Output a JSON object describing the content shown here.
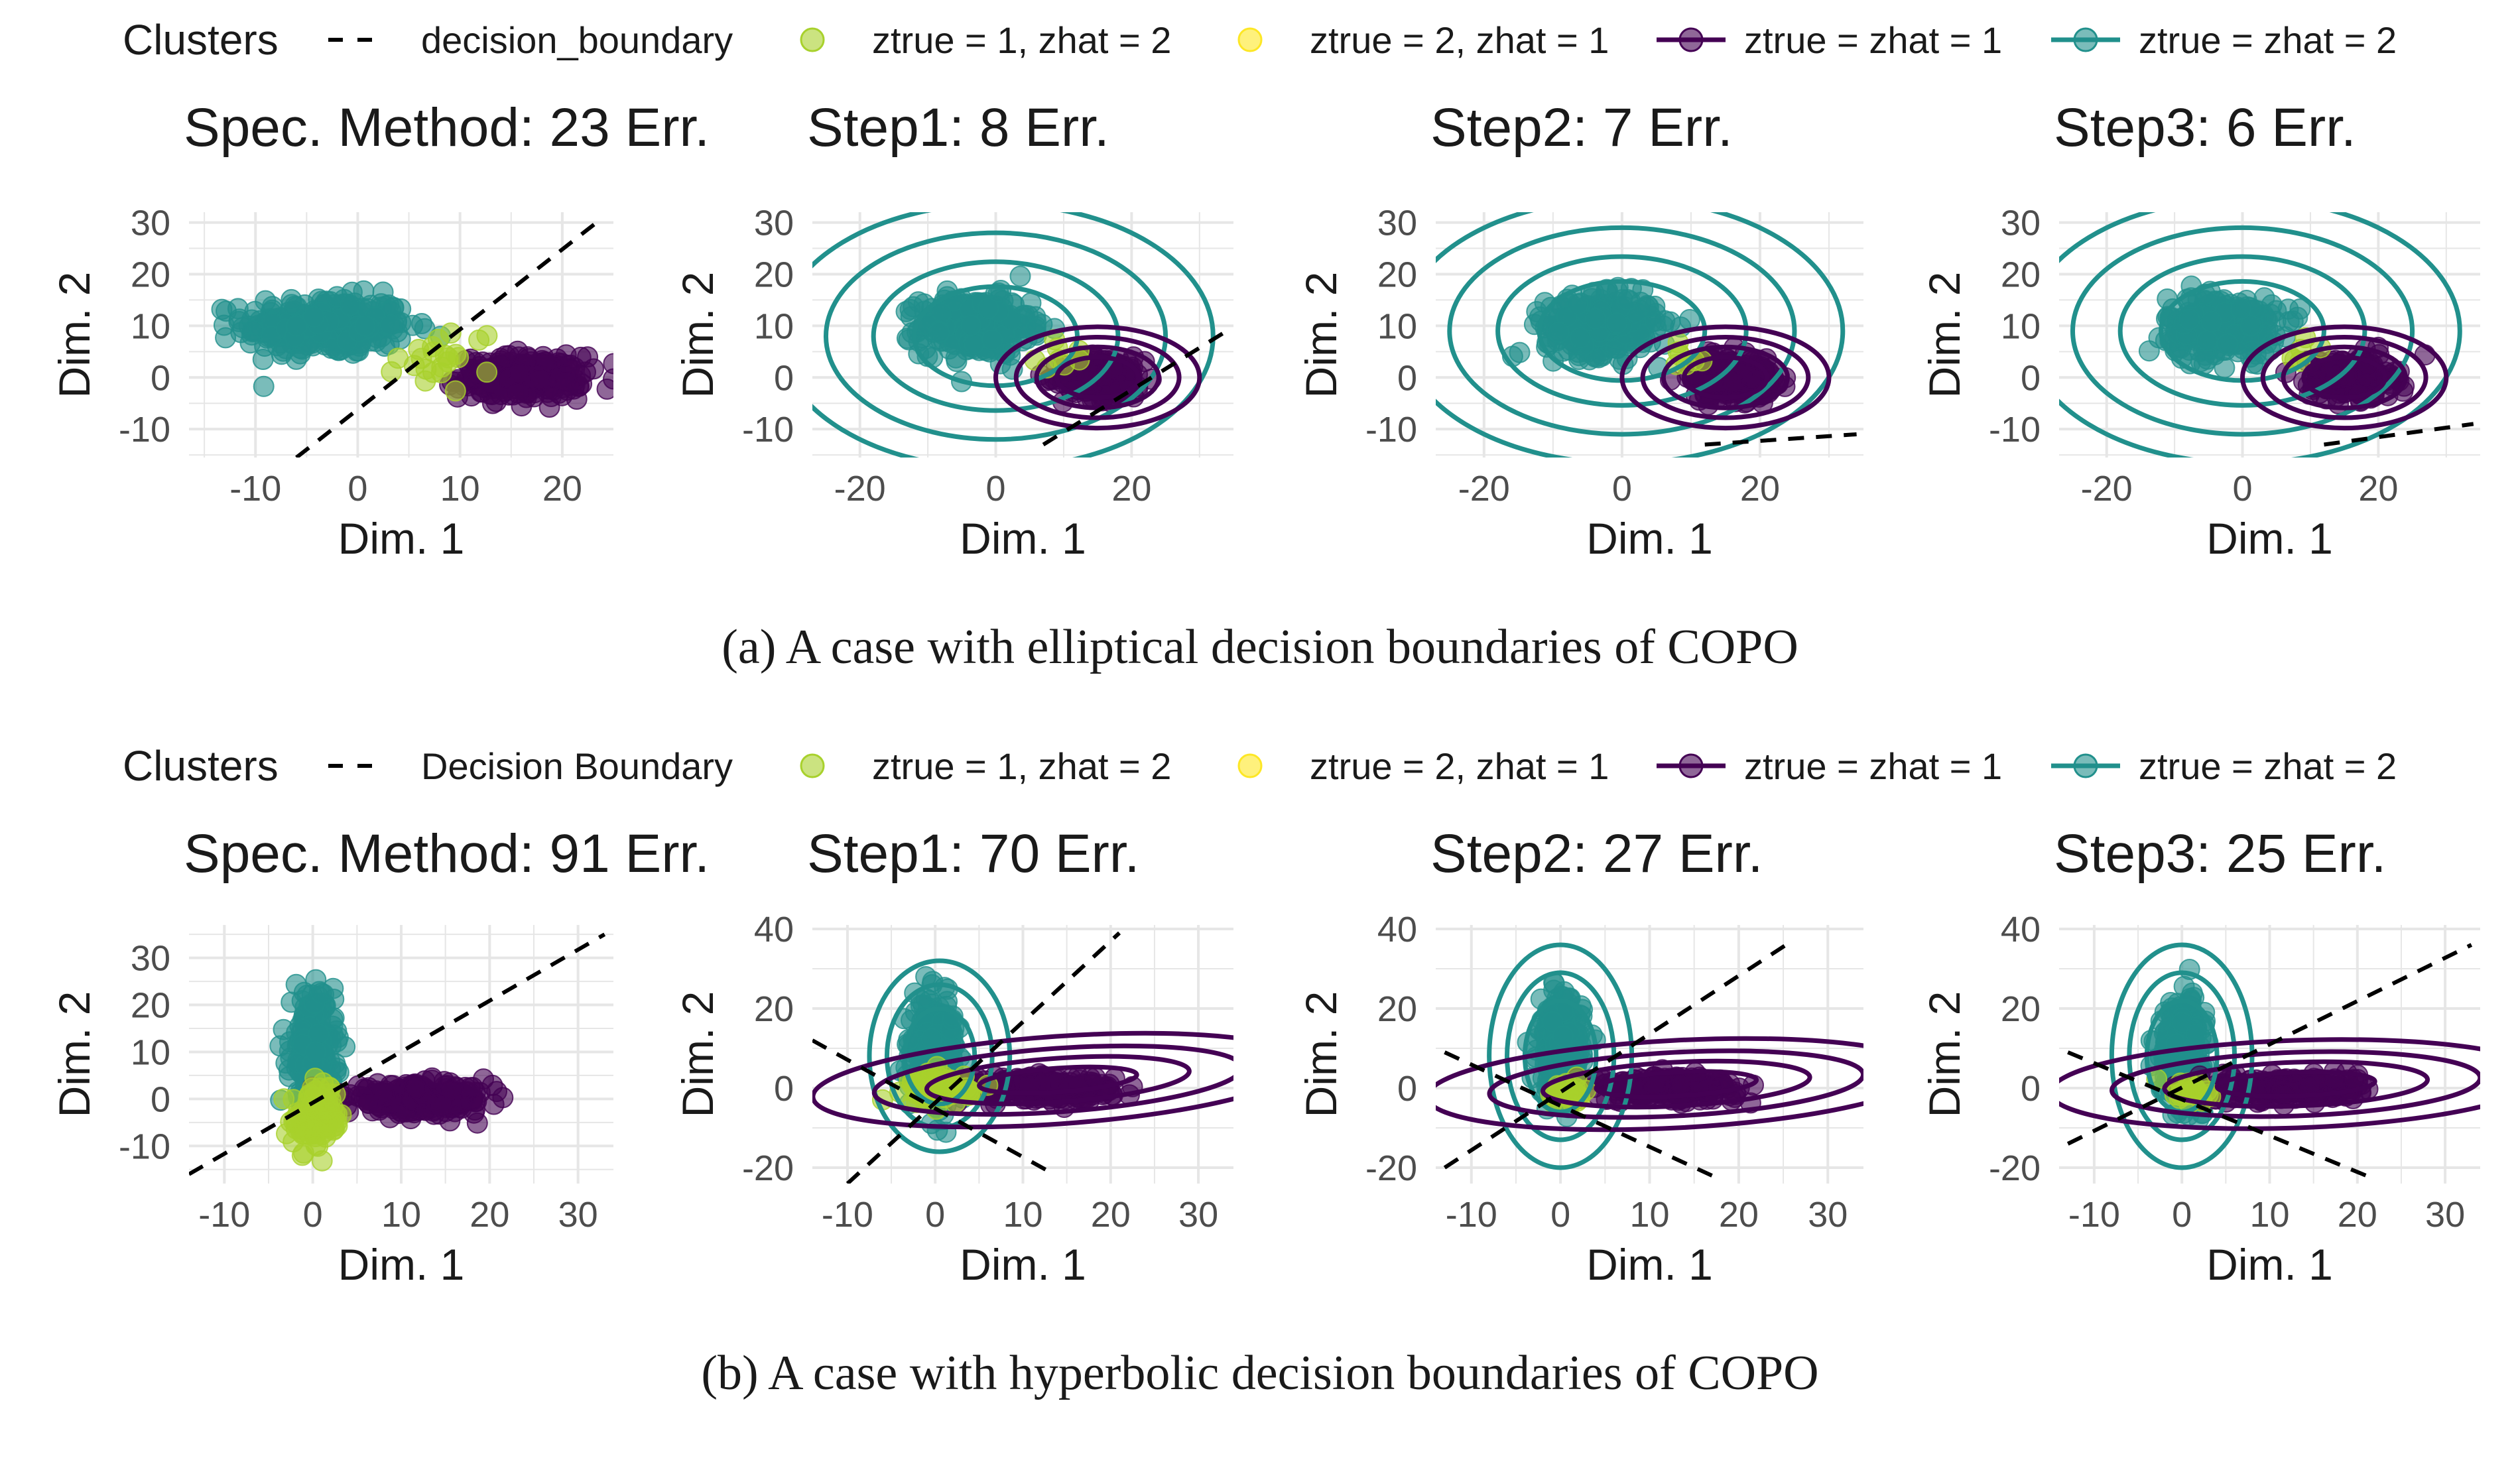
{
  "colors": {
    "teal": "#21908c",
    "purple": "#440154",
    "lime": "#a8d12c",
    "yellow": "#fde725",
    "grid": "#e6e6e6",
    "text": "#1a1a1a",
    "tick": "#4d4d4d"
  },
  "figures": [
    {
      "legend": {
        "title": "Clusters",
        "items": [
          {
            "key": "boundary",
            "label": "decision_boundary"
          },
          {
            "key": "lime",
            "label": "ztrue = 1, zhat = 2"
          },
          {
            "key": "yellow",
            "label": "ztrue = 2, zhat = 1"
          },
          {
            "key": "purple",
            "label": "ztrue = zhat = 1"
          },
          {
            "key": "teal",
            "label": "ztrue = zhat = 2"
          }
        ]
      },
      "caption": "(a) A case with elliptical decision boundaries of COPO"
    },
    {
      "legend": {
        "title": "Clusters",
        "items": [
          {
            "key": "boundary",
            "label": "Decision Boundary"
          },
          {
            "key": "lime",
            "label": "ztrue = 1, zhat = 2"
          },
          {
            "key": "yellow",
            "label": "ztrue = 2, zhat = 1"
          },
          {
            "key": "purple",
            "label": "ztrue = zhat = 1"
          },
          {
            "key": "teal",
            "label": "ztrue = zhat = 2"
          }
        ]
      },
      "caption": "(b) A case with hyperbolic decision boundaries of COPO"
    }
  ],
  "chart_data": [
    {
      "type": "scatter",
      "figure": 0,
      "panel": 0,
      "title": "Spec. Method: 23 Err.",
      "xlabel": "Dim. 1",
      "ylabel": "Dim. 2",
      "xlim": [
        -16.5,
        25
      ],
      "ylim": [
        -15.5,
        32
      ],
      "xticks": [
        -10,
        0,
        10,
        20
      ],
      "xtick_labels": [
        "-10",
        "0",
        "10",
        "20"
      ],
      "yticks": [
        -10,
        0,
        10,
        20,
        30
      ],
      "ytick_labels": [
        "-10",
        "0",
        "10",
        "20",
        "30"
      ],
      "clusters": [
        {
          "key": "teal",
          "center": [
            -3,
            10
          ],
          "sd": [
            4,
            2.8
          ],
          "n": 340
        },
        {
          "key": "purple",
          "center": [
            16,
            0
          ],
          "sd": [
            3,
            2
          ],
          "n": 260
        },
        {
          "key": "lime",
          "center": [
            9,
            4
          ],
          "sd": [
            2.5,
            3
          ],
          "n": 23
        }
      ],
      "boundary": {
        "kind": "line",
        "points": [
          [
            -6,
            -15.5
          ],
          [
            24,
            31
          ]
        ]
      },
      "contours": null
    },
    {
      "type": "scatter",
      "figure": 0,
      "panel": 1,
      "title": "Step1: 8 Err.",
      "xlabel": "Dim. 1",
      "ylabel": "Dim. 2",
      "xlim": [
        -27,
        35
      ],
      "ylim": [
        -15.5,
        32
      ],
      "xticks": [
        -20,
        0,
        20
      ],
      "xtick_labels": [
        "-20",
        "0",
        "20"
      ],
      "yticks": [
        -10,
        0,
        10,
        20,
        30
      ],
      "ytick_labels": [
        "-10",
        "0",
        "10",
        "20",
        "30"
      ],
      "clusters": [
        {
          "key": "teal",
          "center": [
            -3,
            10
          ],
          "sd": [
            4,
            2.8
          ],
          "n": 340
        },
        {
          "key": "purple",
          "center": [
            16,
            0
          ],
          "sd": [
            3,
            2
          ],
          "n": 260
        },
        {
          "key": "lime",
          "center": [
            9,
            4
          ],
          "sd": [
            2,
            2
          ],
          "n": 8
        }
      ],
      "boundary": {
        "kind": "line",
        "points": [
          [
            7,
            -13
          ],
          [
            34,
            9
          ]
        ]
      },
      "contours": [
        {
          "key": "teal",
          "center": [
            0,
            8
          ],
          "radii": [
            [
              12,
              9.6
            ],
            [
              18,
              14.4
            ],
            [
              25,
              20
            ],
            [
              32,
              25.6
            ]
          ],
          "rotation": 0
        },
        {
          "key": "purple",
          "center": [
            15,
            0
          ],
          "radii": [
            [
              6,
              3.9
            ],
            [
              9,
              5.9
            ],
            [
              12,
              7.8
            ],
            [
              15,
              9.8
            ]
          ],
          "rotation": 0
        }
      ]
    },
    {
      "type": "scatter",
      "figure": 0,
      "panel": 2,
      "title": "Step2: 7 Err.",
      "xlabel": "Dim. 1",
      "ylabel": "Dim. 2",
      "xlim": [
        -27,
        35
      ],
      "ylim": [
        -15.5,
        32
      ],
      "xticks": [
        -20,
        0,
        20
      ],
      "xtick_labels": [
        "-20",
        "0",
        "20"
      ],
      "yticks": [
        -10,
        0,
        10,
        20,
        30
      ],
      "ytick_labels": [
        "-10",
        "0",
        "10",
        "20",
        "30"
      ],
      "clusters": [
        {
          "key": "teal",
          "center": [
            -3,
            10
          ],
          "sd": [
            4,
            2.8
          ],
          "n": 340
        },
        {
          "key": "purple",
          "center": [
            16,
            0
          ],
          "sd": [
            3,
            2
          ],
          "n": 260
        },
        {
          "key": "lime",
          "center": [
            9,
            4
          ],
          "sd": [
            2,
            2
          ],
          "n": 7
        }
      ],
      "boundary": {
        "kind": "line",
        "points": [
          [
            12,
            -13
          ],
          [
            34,
            -11
          ]
        ]
      },
      "contours": [
        {
          "key": "teal",
          "center": [
            0,
            9
          ],
          "radii": [
            [
              12,
              9.6
            ],
            [
              18,
              14.4
            ],
            [
              25,
              20
            ],
            [
              32,
              25.6
            ]
          ],
          "rotation": 0
        },
        {
          "key": "purple",
          "center": [
            15,
            0
          ],
          "radii": [
            [
              6,
              3.9
            ],
            [
              9,
              5.9
            ],
            [
              12,
              7.8
            ],
            [
              15,
              9.8
            ]
          ],
          "rotation": 0
        }
      ]
    },
    {
      "type": "scatter",
      "figure": 0,
      "panel": 3,
      "title": "Step3: 6 Err.",
      "xlabel": "Dim. 1",
      "ylabel": "Dim. 2",
      "xlim": [
        -27,
        35
      ],
      "ylim": [
        -15.5,
        32
      ],
      "xticks": [
        -20,
        0,
        20
      ],
      "xtick_labels": [
        "-20",
        "0",
        "20"
      ],
      "yticks": [
        -10,
        0,
        10,
        20,
        30
      ],
      "ytick_labels": [
        "-10",
        "0",
        "10",
        "20",
        "30"
      ],
      "clusters": [
        {
          "key": "teal",
          "center": [
            -3,
            10
          ],
          "sd": [
            4,
            2.8
          ],
          "n": 340
        },
        {
          "key": "purple",
          "center": [
            16,
            0
          ],
          "sd": [
            3,
            2
          ],
          "n": 260
        },
        {
          "key": "lime",
          "center": [
            9,
            4
          ],
          "sd": [
            2,
            2
          ],
          "n": 6
        }
      ],
      "boundary": {
        "kind": "line",
        "points": [
          [
            12,
            -13
          ],
          [
            34,
            -9
          ]
        ]
      },
      "contours": [
        {
          "key": "teal",
          "center": [
            0,
            9
          ],
          "radii": [
            [
              12,
              9.6
            ],
            [
              18,
              14.4
            ],
            [
              25,
              20
            ],
            [
              32,
              25.6
            ]
          ],
          "rotation": 0
        },
        {
          "key": "purple",
          "center": [
            15,
            0
          ],
          "radii": [
            [
              6,
              3.9
            ],
            [
              9,
              5.9
            ],
            [
              12,
              7.8
            ],
            [
              15,
              9.8
            ]
          ],
          "rotation": 0
        }
      ]
    },
    {
      "type": "scatter",
      "figure": 1,
      "panel": 0,
      "title": "Spec. Method: 91 Err.",
      "xlabel": "Dim. 1",
      "ylabel": "Dim. 2",
      "xlim": [
        -14,
        34
      ],
      "ylim": [
        -18,
        37
      ],
      "xticks": [
        -10,
        0,
        10,
        20,
        30
      ],
      "xtick_labels": [
        "-10",
        "0",
        "10",
        "20",
        "30"
      ],
      "yticks": [
        -10,
        0,
        10,
        20,
        30
      ],
      "ytick_labels": [
        "-10",
        "0",
        "10",
        "20",
        "30"
      ],
      "clusters": [
        {
          "key": "teal",
          "center": [
            0,
            10
          ],
          "sd": [
            1.2,
            6
          ],
          "n": 300
        },
        {
          "key": "purple",
          "center": [
            12,
            0
          ],
          "sd": [
            4,
            1.5
          ],
          "n": 260
        },
        {
          "key": "lime",
          "center": [
            0.5,
            -4
          ],
          "sd": [
            1.5,
            3.5
          ],
          "n": 91
        }
      ],
      "boundary": {
        "kind": "line",
        "points": [
          [
            -14,
            -16
          ],
          [
            33,
            35
          ]
        ]
      },
      "contours": null
    },
    {
      "type": "scatter",
      "figure": 1,
      "panel": 1,
      "title": "Step1: 70 Err.",
      "xlabel": "Dim. 1",
      "ylabel": "Dim. 2",
      "xlim": [
        -14,
        34
      ],
      "ylim": [
        -24,
        41
      ],
      "xticks": [
        -10,
        0,
        10,
        20,
        30
      ],
      "xtick_labels": [
        "-10",
        "0",
        "10",
        "20",
        "30"
      ],
      "yticks": [
        -20,
        0,
        20,
        40
      ],
      "ytick_labels": [
        "-20",
        "0",
        "20",
        "40"
      ],
      "clusters": [
        {
          "key": "teal",
          "center": [
            0,
            10
          ],
          "sd": [
            1.2,
            6
          ],
          "n": 300
        },
        {
          "key": "purple",
          "center": [
            12,
            0
          ],
          "sd": [
            4,
            1.5
          ],
          "n": 260
        },
        {
          "key": "lime",
          "center": [
            0.5,
            0
          ],
          "sd": [
            1.8,
            2
          ],
          "n": 70
        }
      ],
      "boundary": {
        "kind": "two-lines",
        "lines": [
          [
            [
              -10,
              -24
            ],
            [
              21,
              39
            ]
          ],
          [
            [
              -14,
              12
            ],
            [
              13,
              -21
            ]
          ]
        ]
      },
      "contours": [
        {
          "key": "teal",
          "center": [
            0.5,
            8
          ],
          "radii": [
            [
              4,
              12
            ],
            [
              6,
              18
            ],
            [
              8,
              24
            ]
          ],
          "rotation": 0
        },
        {
          "key": "purple",
          "center": [
            14,
            2
          ],
          "radii": [
            [
              9,
              3
            ],
            [
              15,
              5.5
            ],
            [
              21,
              8
            ],
            [
              28,
              11
            ]
          ],
          "rotation": 4
        }
      ]
    },
    {
      "type": "scatter",
      "figure": 1,
      "panel": 2,
      "title": "Step2: 27 Err.",
      "xlabel": "Dim. 1",
      "ylabel": "Dim. 2",
      "xlim": [
        -14,
        34
      ],
      "ylim": [
        -24,
        41
      ],
      "xticks": [
        -10,
        0,
        10,
        20,
        30
      ],
      "xtick_labels": [
        "-10",
        "0",
        "10",
        "20",
        "30"
      ],
      "yticks": [
        -20,
        0,
        20,
        40
      ],
      "ytick_labels": [
        "-20",
        "0",
        "20",
        "40"
      ],
      "clusters": [
        {
          "key": "teal",
          "center": [
            0,
            10
          ],
          "sd": [
            1.2,
            6
          ],
          "n": 300
        },
        {
          "key": "purple",
          "center": [
            12,
            0
          ],
          "sd": [
            4,
            1.5
          ],
          "n": 260
        },
        {
          "key": "lime",
          "center": [
            1,
            -1
          ],
          "sd": [
            1.2,
            1.5
          ],
          "n": 27
        }
      ],
      "boundary": {
        "kind": "two-lines",
        "lines": [
          [
            [
              -13,
              -20
            ],
            [
              26,
              37
            ]
          ],
          [
            [
              -13,
              9
            ],
            [
              17,
              -22
            ]
          ]
        ]
      },
      "contours": [
        {
          "key": "teal",
          "center": [
            0,
            8
          ],
          "radii": [
            [
              4,
              14
            ],
            [
              6,
              21
            ],
            [
              8,
              28
            ]
          ],
          "rotation": 0
        },
        {
          "key": "purple",
          "center": [
            13,
            1
          ],
          "radii": [
            [
              9,
              3
            ],
            [
              15,
              5.5
            ],
            [
              21,
              8
            ],
            [
              28,
              11
            ]
          ],
          "rotation": 3
        }
      ]
    },
    {
      "type": "scatter",
      "figure": 1,
      "panel": 3,
      "title": "Step3: 25 Err.",
      "xlabel": "Dim. 1",
      "ylabel": "Dim. 2",
      "xlim": [
        -14,
        34
      ],
      "ylim": [
        -24,
        41
      ],
      "xticks": [
        -10,
        0,
        10,
        20,
        30
      ],
      "xtick_labels": [
        "-10",
        "0",
        "10",
        "20",
        "30"
      ],
      "yticks": [
        -20,
        0,
        20,
        40
      ],
      "ytick_labels": [
        "-20",
        "0",
        "20",
        "40"
      ],
      "clusters": [
        {
          "key": "teal",
          "center": [
            0,
            10
          ],
          "sd": [
            1.2,
            6
          ],
          "n": 300
        },
        {
          "key": "purple",
          "center": [
            12,
            0
          ],
          "sd": [
            4,
            1.5
          ],
          "n": 260
        },
        {
          "key": "lime",
          "center": [
            1,
            -1
          ],
          "sd": [
            1.2,
            1.5
          ],
          "n": 25
        }
      ],
      "boundary": {
        "kind": "two-lines",
        "lines": [
          [
            [
              -13,
              -14
            ],
            [
              33,
              36
            ]
          ],
          [
            [
              -13,
              9
            ],
            [
              21,
              -22
            ]
          ]
        ]
      },
      "contours": [
        {
          "key": "teal",
          "center": [
            0,
            8
          ],
          "radii": [
            [
              4,
              14
            ],
            [
              6,
              21
            ],
            [
              8,
              28
            ]
          ],
          "rotation": 0
        },
        {
          "key": "purple",
          "center": [
            13,
            1
          ],
          "radii": [
            [
              9,
              3
            ],
            [
              15,
              5.5
            ],
            [
              21,
              8
            ],
            [
              28,
              11
            ]
          ],
          "rotation": 2
        }
      ]
    }
  ]
}
